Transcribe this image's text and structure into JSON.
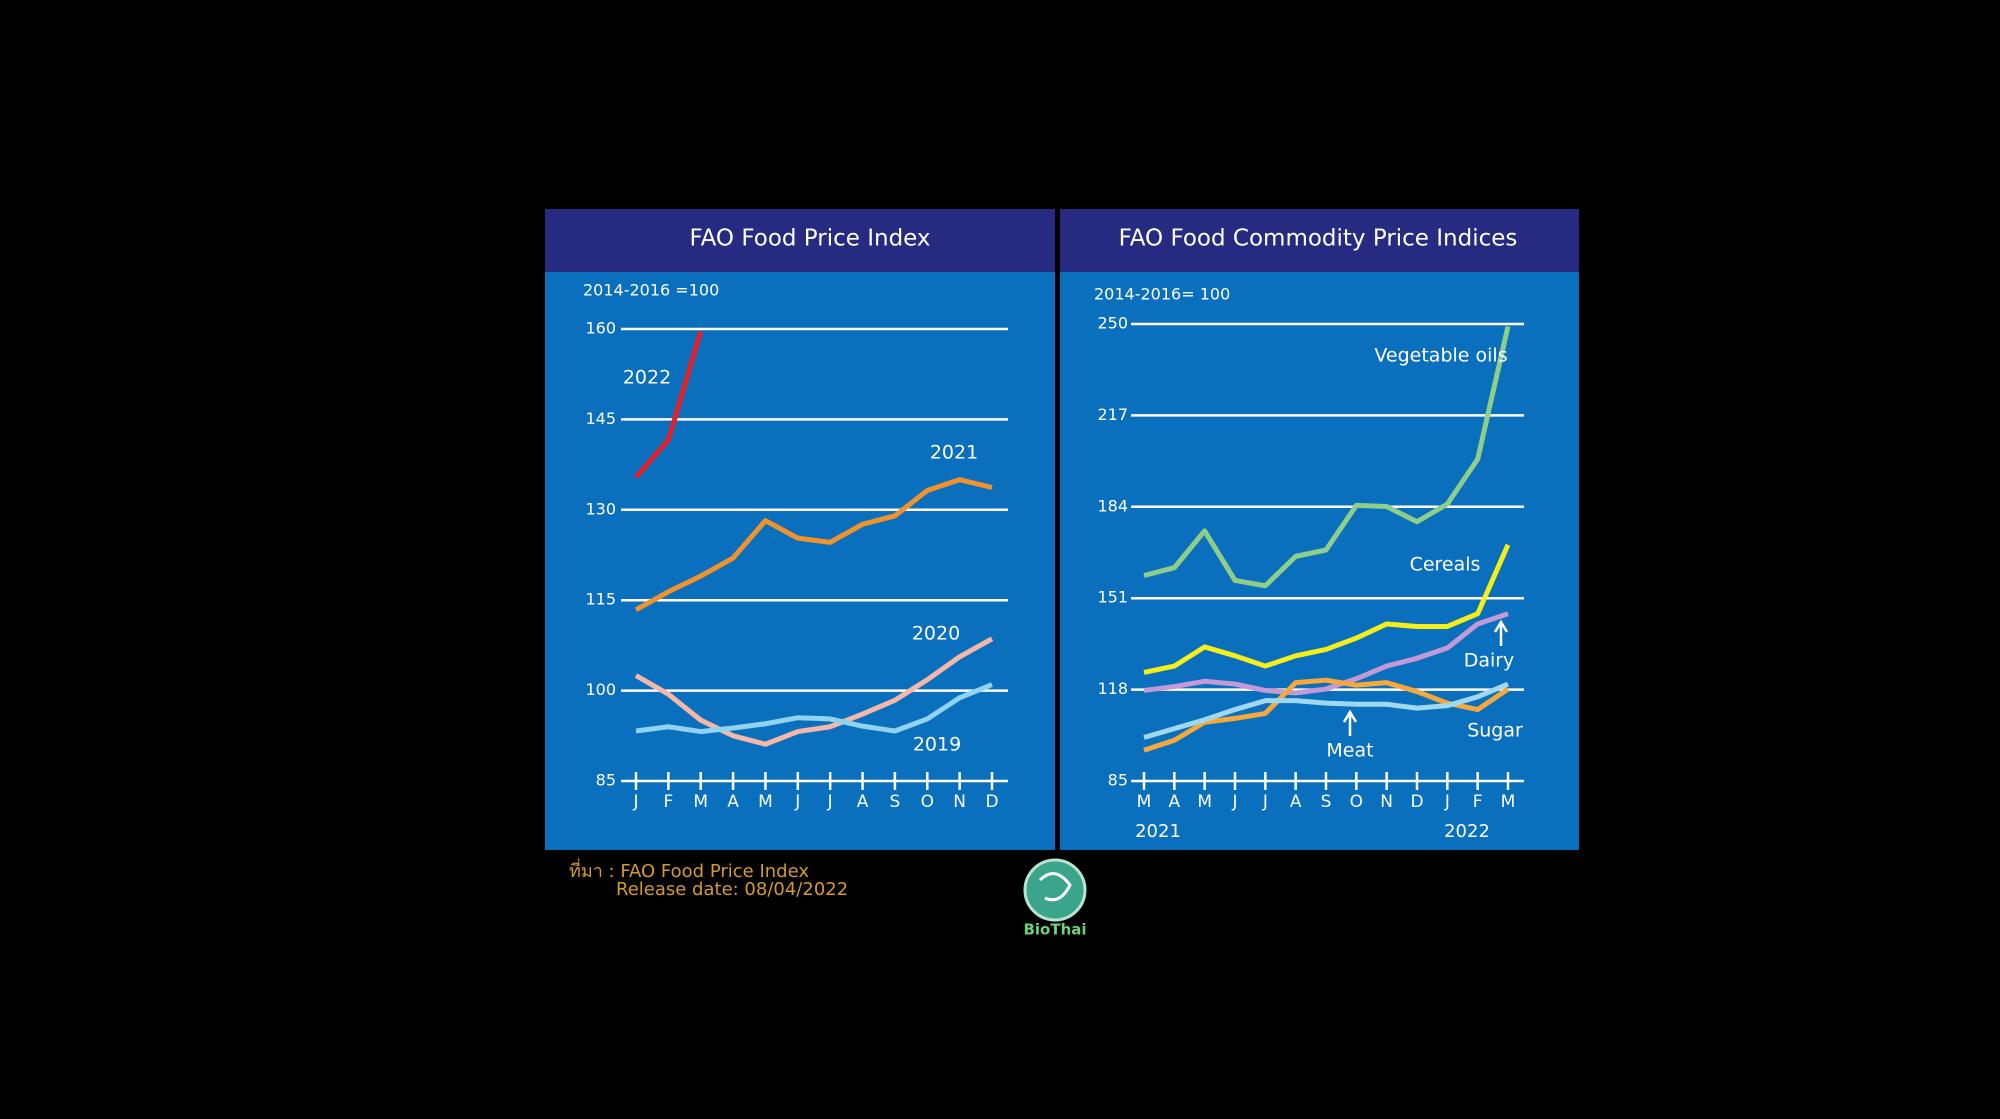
{
  "chart_data": [
    {
      "type": "line",
      "title": "FAO Food Price Index",
      "subtitle": "2014-2016 =100",
      "categories": [
        "J",
        "F",
        "M",
        "A",
        "M",
        "J",
        "J",
        "A",
        "S",
        "O",
        "N",
        "D"
      ],
      "ylim": [
        85,
        160
      ],
      "yticks": [
        85,
        100,
        115,
        130,
        145,
        160
      ],
      "grid": true,
      "series": [
        {
          "name": "2022",
          "color": "#e3202a",
          "values": [
            135.4,
            141.6,
            159.6,
            null,
            null,
            null,
            null,
            null,
            null,
            null,
            null,
            null
          ]
        },
        {
          "name": "2021",
          "color": "#f0922d",
          "values": [
            113.4,
            116.4,
            119,
            122,
            128.2,
            125.3,
            124.6,
            127.6,
            129,
            133.2,
            135,
            133.7
          ]
        },
        {
          "name": "2020",
          "color": "#f5b8a8",
          "values": [
            102.5,
            99.4,
            95.1,
            92.5,
            91.1,
            93.2,
            94,
            96.1,
            98.4,
            101.8,
            105.6,
            108.6
          ]
        },
        {
          "name": "2019",
          "color": "#8fd3f0",
          "values": [
            93.3,
            94,
            93.2,
            93.8,
            94.5,
            95.5,
            95.3,
            94.1,
            93.3,
            95.3,
            98.8,
            101
          ]
        }
      ]
    },
    {
      "type": "line",
      "title": "FAO Food Commodity Price Indices",
      "subtitle": "2014-2016= 100",
      "categories": [
        "M",
        "A",
        "M",
        "J",
        "J",
        "A",
        "S",
        "O",
        "N",
        "D",
        "J",
        "F",
        "M"
      ],
      "year_labels": [
        "2021",
        "2022"
      ],
      "ylim": [
        85,
        250
      ],
      "yticks": [
        85,
        118,
        151,
        184,
        217,
        250
      ],
      "grid": true,
      "series": [
        {
          "name": "Vegetable oils",
          "color": "#8fce8a",
          "values": [
            159.2,
            162,
            175.3,
            157.4,
            155.5,
            166.1,
            168.4,
            184.5,
            184.1,
            178.6,
            185,
            201.2,
            249.1
          ]
        },
        {
          "name": "Cereals",
          "color": "#f5ee1a",
          "values": [
            124.2,
            126.5,
            133.4,
            130.2,
            126.5,
            130.2,
            132.5,
            136.6,
            141.7,
            140.8,
            140.8,
            145.4,
            170.3
          ]
        },
        {
          "name": "Dairy",
          "color": "#c39ad6",
          "values": [
            117.7,
            119.1,
            121,
            120,
            117.7,
            116.8,
            118.2,
            121.9,
            126.5,
            129.3,
            133,
            141.7,
            145.4
          ]
        },
        {
          "name": "Meat",
          "color": "#f6a93a",
          "values": [
            96.1,
            99.7,
            106.2,
            107.6,
            109.4,
            120.5,
            121.4,
            119.6,
            120.5,
            117.3,
            113.1,
            110.8,
            118.2
          ]
        },
        {
          "name": "Sugar",
          "color": "#9fd8ef",
          "values": [
            100.7,
            103.9,
            107.1,
            110.8,
            114,
            114,
            113.1,
            112.7,
            112.7,
            111.3,
            112.2,
            115.4,
            120
          ]
        }
      ]
    }
  ],
  "source": [
    "ที่มา : FAO Food Price Index",
    "Release date: 08/04/2022"
  ],
  "logo_text": "BioThai"
}
